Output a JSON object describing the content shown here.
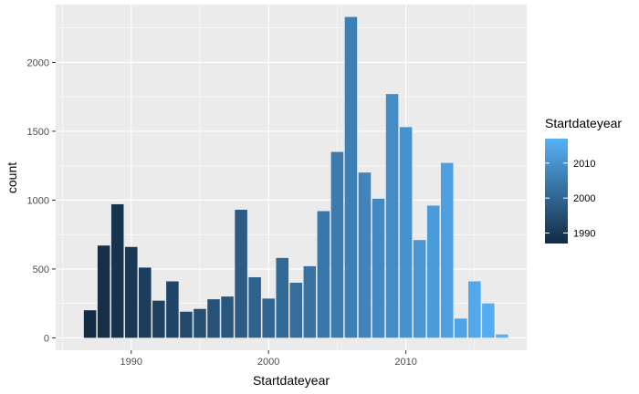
{
  "chart_data": {
    "type": "bar",
    "xlabel": "Startdateyear",
    "ylabel": "count",
    "xlim": [
      1984.5,
      2018.8
    ],
    "ylim": [
      -90,
      2420
    ],
    "x_ticks": [
      1990,
      2000,
      2010
    ],
    "y_ticks": [
      0,
      500,
      1000,
      1500,
      2000
    ],
    "grid": true,
    "legend": {
      "title": "Startdateyear",
      "position": "right",
      "ticks": [
        1990,
        2000,
        2010
      ],
      "color_low": "#132B43",
      "color_high": "#56B1F7",
      "range": [
        1987,
        2017
      ]
    },
    "x": [
      1987,
      1988,
      1989,
      1990,
      1991,
      1992,
      1993,
      1994,
      1995,
      1996,
      1997,
      1998,
      1999,
      2000,
      2001,
      2002,
      2003,
      2004,
      2005,
      2006,
      2007,
      2008,
      2009,
      2010,
      2011,
      2012,
      2013,
      2014,
      2015,
      2016,
      2017
    ],
    "values": [
      200,
      670,
      970,
      660,
      510,
      270,
      410,
      190,
      210,
      280,
      300,
      930,
      440,
      285,
      580,
      400,
      520,
      920,
      1350,
      2330,
      1200,
      1010,
      1770,
      1530,
      710,
      960,
      1270,
      140,
      410,
      250,
      25
    ]
  }
}
